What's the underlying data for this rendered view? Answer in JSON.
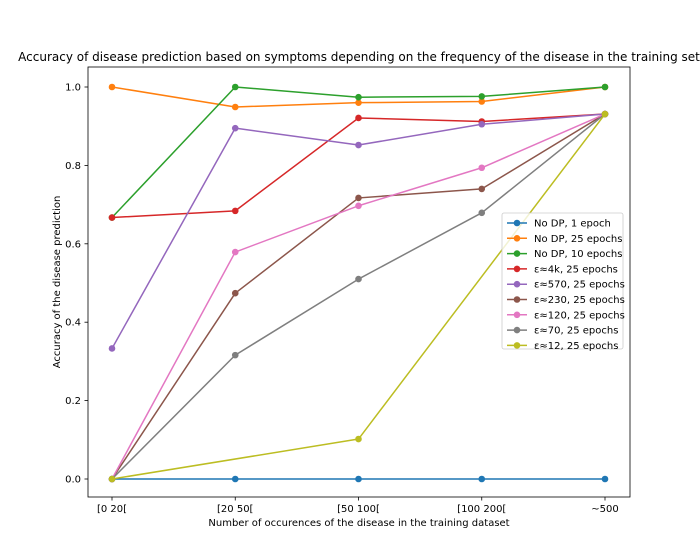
{
  "chart_data": {
    "type": "line",
    "title": "Accuracy of disease prediction based on symptoms depending on the frequency of the disease in the training set",
    "xlabel": "Number of occurences of the disease in the training dataset",
    "ylabel": "Accuracy of the disease prediction",
    "categories": [
      "[0 20[",
      "[20 50[",
      "[50 100[",
      "[100 200[",
      "~500"
    ],
    "ylim": [
      -0.025,
      1.05
    ],
    "yticks": [
      "0.0",
      "0.2",
      "0.4",
      "0.6",
      "0.8",
      "1.0"
    ],
    "grid": false,
    "legend_position": "center-right",
    "series": [
      {
        "name": "No DP, 1 epoch",
        "color": "#1f77b4",
        "x": [
          0,
          1,
          2,
          3,
          4
        ],
        "values": [
          0.0,
          0.0,
          0.0,
          0.0,
          0.0
        ]
      },
      {
        "name": "No DP, 25 epochs",
        "color": "#ff7f0e",
        "x": [
          0,
          1,
          2,
          3,
          4
        ],
        "values": [
          1.0,
          0.949,
          0.96,
          0.963,
          1.0
        ]
      },
      {
        "name": "No DP, 10 epochs",
        "color": "#2ca02c",
        "x": [
          0,
          1,
          2,
          3,
          4
        ],
        "values": [
          0.667,
          1.0,
          0.974,
          0.976,
          1.0
        ]
      },
      {
        "name": "ε≈4k, 25 epochs",
        "color": "#d62728",
        "x": [
          0,
          1,
          2,
          3,
          4
        ],
        "values": [
          0.667,
          0.684,
          0.921,
          0.912,
          0.931
        ]
      },
      {
        "name": "ε≈570, 25 epochs",
        "color": "#9467bd",
        "x": [
          0,
          1,
          2,
          3,
          4
        ],
        "values": [
          0.333,
          0.895,
          0.852,
          0.905,
          0.931
        ]
      },
      {
        "name": "ε≈230, 25 epochs",
        "color": "#8c564b",
        "x": [
          0,
          1,
          2,
          3,
          4
        ],
        "values": [
          0.0,
          0.474,
          0.717,
          0.74,
          0.931
        ]
      },
      {
        "name": "ε≈120, 25 epochs",
        "color": "#e377c2",
        "x": [
          0,
          1,
          2,
          3,
          4
        ],
        "values": [
          0.0,
          0.579,
          0.697,
          0.794,
          0.931
        ]
      },
      {
        "name": "ε≈70, 25 epochs",
        "color": "#7f7f7f",
        "x": [
          0,
          1,
          2,
          3,
          4
        ],
        "values": [
          0.0,
          0.316,
          0.51,
          0.679,
          0.931
        ]
      },
      {
        "name": "ε≈12, 25 epochs",
        "color": "#bcbd22",
        "x": [
          0,
          2,
          4
        ],
        "values": [
          0.0,
          0.102,
          0.931
        ]
      }
    ]
  }
}
